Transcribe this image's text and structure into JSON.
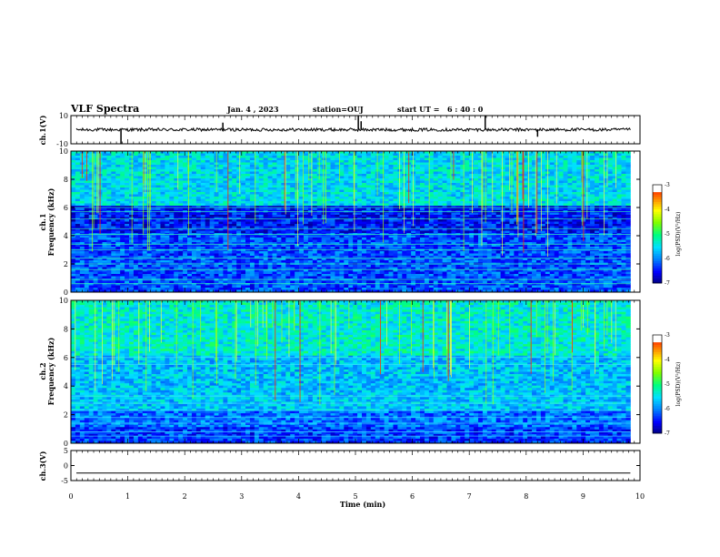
{
  "header": {
    "title": "VLF Spectra",
    "date": "Jan. 4 , 2023",
    "station": "station=OUJ",
    "start_label": "start UT =",
    "start_time": "6 : 40 : 0"
  },
  "chart_data": [
    {
      "id": "ch1_waveform",
      "type": "line",
      "ylabel": "ch.1(V)",
      "ylim": [
        -10,
        10
      ],
      "yticks": [
        {
          "v": 10,
          "label": "10"
        },
        {
          "v": -10,
          "label": "-10"
        }
      ],
      "xlim": [
        0,
        10
      ],
      "baseline": 0,
      "spikes": [
        {
          "x": 0.88,
          "y": -10
        },
        {
          "x": 2.67,
          "y": 5
        },
        {
          "x": 5.1,
          "y": 6
        },
        {
          "x": 5.05,
          "y": 10
        },
        {
          "x": 7.28,
          "y": 10
        },
        {
          "x": 8.2,
          "y": -5
        }
      ]
    },
    {
      "id": "ch1_spectrogram",
      "type": "heatmap",
      "ylabel": "ch.1\nFrequency (kHz)",
      "ylim": [
        0,
        10
      ],
      "yticks": [
        0,
        2,
        4,
        6,
        8,
        10
      ],
      "xlim": [
        0,
        10
      ],
      "colorbar": {
        "label": "log(PSD)(V²/Hz)",
        "range": [
          -7,
          -3
        ],
        "ticks": [
          -3,
          -4,
          -5,
          -6,
          -7
        ]
      }
    },
    {
      "id": "ch2_spectrogram",
      "type": "heatmap",
      "ylabel": "ch.2\nFrequency (kHz)",
      "ylim": [
        0,
        10
      ],
      "yticks": [
        0,
        2,
        4,
        6,
        8,
        10
      ],
      "xlim": [
        0,
        10
      ],
      "colorbar": {
        "label": "log(PSD)(V²/Hz)",
        "range": [
          -7,
          -3
        ],
        "ticks": [
          -3,
          -4,
          -5,
          -6,
          -7
        ]
      }
    },
    {
      "id": "ch3_waveform",
      "type": "line",
      "ylabel": "ch.3(V)",
      "ylim": [
        -5,
        5
      ],
      "yticks": [
        {
          "v": 5,
          "label": "5"
        },
        {
          "v": 0,
          "label": "0"
        },
        {
          "v": -5,
          "label": "-5"
        }
      ],
      "xlim": [
        0,
        10
      ],
      "baseline": -2.5
    }
  ],
  "x_axis": {
    "label": "Time (min)",
    "ticks": [
      "0",
      "1",
      "2",
      "3",
      "4",
      "5",
      "6",
      "7",
      "8",
      "9",
      "10"
    ],
    "data_end": 9.83
  },
  "colors": {
    "trace": "#000000",
    "cmap": [
      "#00007a",
      "#0000ff",
      "#0080ff",
      "#00e0ff",
      "#00ff80",
      "#80ff00",
      "#ffff00",
      "#ff8000",
      "#ff0000",
      "#ffffff"
    ]
  }
}
